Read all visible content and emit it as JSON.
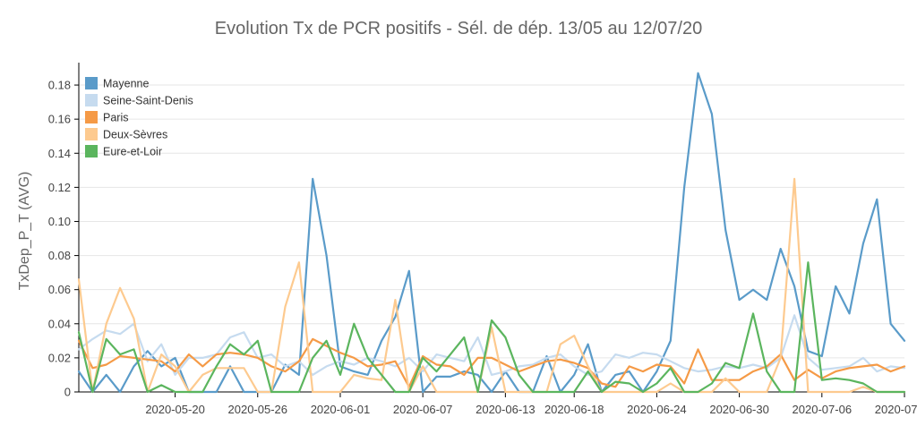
{
  "chart_data": {
    "type": "line",
    "title": "Evolution Tx de PCR positifs - Sél. de dép.   13/05  au 12/07/20",
    "ylabel": "TxDep_P_T (AVG)",
    "ylim": [
      0,
      0.19
    ],
    "yticks": [
      0,
      0.02,
      0.04,
      0.06,
      0.08,
      0.1,
      0.12,
      0.14,
      0.16,
      0.18
    ],
    "ytick_labels": [
      "0",
      "0.02",
      "0.04",
      "0.06",
      "0.08",
      "0.10",
      "0.12",
      "0.14",
      "0.16",
      "0.18"
    ],
    "x_start": "2020-05-13",
    "x_end": "2020-07-12",
    "xticks": [
      "2020-05-20",
      "2020-05-26",
      "2020-06-01",
      "2020-06-07",
      "2020-06-13",
      "2020-06-18",
      "2020-06-24",
      "2020-06-30",
      "2020-07-06",
      "2020-07-12"
    ],
    "xtick_labels": [
      "2020-05-20",
      "2020-05-26",
      "2020-06-01",
      "2020-06-07",
      "2020-06-13",
      "2020-06-18",
      "2020-06-24",
      "2020-06-30",
      "2020-07-06",
      "2020-07-12"
    ],
    "grid": true,
    "legend_position": "top-left",
    "series": [
      {
        "name": "Mayenne",
        "color": "#5a9bc9",
        "x": [
          "2020-05-13",
          "2020-05-14",
          "2020-05-15",
          "2020-05-16",
          "2020-05-17",
          "2020-05-18",
          "2020-05-19",
          "2020-05-20",
          "2020-05-21",
          "2020-05-22",
          "2020-05-23",
          "2020-05-24",
          "2020-05-25",
          "2020-05-26",
          "2020-05-27",
          "2020-05-28",
          "2020-05-29",
          "2020-05-30",
          "2020-05-31",
          "2020-06-01",
          "2020-06-02",
          "2020-06-03",
          "2020-06-04",
          "2020-06-05",
          "2020-06-06",
          "2020-06-07",
          "2020-06-08",
          "2020-06-09",
          "2020-06-10",
          "2020-06-11",
          "2020-06-12",
          "2020-06-13",
          "2020-06-14",
          "2020-06-15",
          "2020-06-16",
          "2020-06-17",
          "2020-06-18",
          "2020-06-19",
          "2020-06-20",
          "2020-06-21",
          "2020-06-22",
          "2020-06-23",
          "2020-06-24",
          "2020-06-25",
          "2020-06-26",
          "2020-06-27",
          "2020-06-28",
          "2020-06-29",
          "2020-06-30",
          "2020-07-01",
          "2020-07-02",
          "2020-07-03",
          "2020-07-04",
          "2020-07-05",
          "2020-07-06",
          "2020-07-07",
          "2020-07-08",
          "2020-07-09",
          "2020-07-10",
          "2020-07-11",
          "2020-07-12"
        ],
        "values": [
          0.012,
          0.0,
          0.01,
          0.0,
          0.015,
          0.024,
          0.015,
          0.02,
          0.0,
          0.0,
          0.0,
          0.015,
          0.0,
          0.0,
          0.0,
          0.016,
          0.01,
          0.125,
          0.08,
          0.015,
          0.012,
          0.01,
          0.03,
          0.044,
          0.071,
          0.0,
          0.009,
          0.009,
          0.012,
          0.01,
          0.0,
          0.012,
          0.0,
          0.0,
          0.021,
          0.0,
          0.01,
          0.028,
          0.0,
          0.01,
          0.012,
          0.0,
          0.012,
          0.03,
          0.12,
          0.187,
          0.163,
          0.095,
          0.054,
          0.06,
          0.054,
          0.084,
          0.062,
          0.024,
          0.021,
          0.062,
          0.046,
          0.087,
          0.113,
          0.04,
          0.03
        ]
      },
      {
        "name": "Seine-Saint-Denis",
        "color": "#c6dbef",
        "x": [
          "2020-05-13",
          "2020-05-14",
          "2020-05-15",
          "2020-05-16",
          "2020-05-17",
          "2020-05-18",
          "2020-05-19",
          "2020-05-20",
          "2020-05-21",
          "2020-05-22",
          "2020-05-23",
          "2020-05-24",
          "2020-05-25",
          "2020-05-26",
          "2020-05-27",
          "2020-05-28",
          "2020-05-29",
          "2020-05-30",
          "2020-05-31",
          "2020-06-01",
          "2020-06-02",
          "2020-06-03",
          "2020-06-04",
          "2020-06-05",
          "2020-06-06",
          "2020-06-07",
          "2020-06-08",
          "2020-06-09",
          "2020-06-10",
          "2020-06-11",
          "2020-06-12",
          "2020-06-13",
          "2020-06-14",
          "2020-06-15",
          "2020-06-16",
          "2020-06-17",
          "2020-06-18",
          "2020-06-19",
          "2020-06-20",
          "2020-06-21",
          "2020-06-22",
          "2020-06-23",
          "2020-06-24",
          "2020-06-25",
          "2020-06-26",
          "2020-06-27",
          "2020-06-28",
          "2020-06-29",
          "2020-06-30",
          "2020-07-01",
          "2020-07-02",
          "2020-07-03",
          "2020-07-04",
          "2020-07-05",
          "2020-07-06",
          "2020-07-07",
          "2020-07-08",
          "2020-07-09",
          "2020-07-10",
          "2020-07-11",
          "2020-07-12"
        ],
        "values": [
          0.025,
          0.031,
          0.036,
          0.034,
          0.04,
          0.018,
          0.028,
          0.01,
          0.02,
          0.02,
          0.022,
          0.032,
          0.035,
          0.02,
          0.022,
          0.015,
          0.018,
          0.01,
          0.015,
          0.018,
          0.016,
          0.02,
          0.018,
          0.015,
          0.02,
          0.012,
          0.022,
          0.02,
          0.018,
          0.032,
          0.01,
          0.012,
          0.015,
          0.016,
          0.02,
          0.022,
          0.015,
          0.01,
          0.012,
          0.022,
          0.02,
          0.023,
          0.022,
          0.018,
          0.014,
          0.012,
          0.013,
          0.015,
          0.014,
          0.016,
          0.014,
          0.02,
          0.045,
          0.02,
          0.013,
          0.014,
          0.015,
          0.02,
          0.012,
          0.015,
          0.014
        ]
      },
      {
        "name": "Paris",
        "color": "#f59a46",
        "x": [
          "2020-05-13",
          "2020-05-14",
          "2020-05-15",
          "2020-05-16",
          "2020-05-17",
          "2020-05-18",
          "2020-05-19",
          "2020-05-20",
          "2020-05-21",
          "2020-05-22",
          "2020-05-23",
          "2020-05-24",
          "2020-05-25",
          "2020-05-26",
          "2020-05-27",
          "2020-05-28",
          "2020-05-29",
          "2020-05-30",
          "2020-05-31",
          "2020-06-01",
          "2020-06-02",
          "2020-06-03",
          "2020-06-04",
          "2020-06-05",
          "2020-06-06",
          "2020-06-07",
          "2020-06-08",
          "2020-06-09",
          "2020-06-10",
          "2020-06-11",
          "2020-06-12",
          "2020-06-13",
          "2020-06-14",
          "2020-06-15",
          "2020-06-16",
          "2020-06-17",
          "2020-06-18",
          "2020-06-19",
          "2020-06-20",
          "2020-06-21",
          "2020-06-22",
          "2020-06-23",
          "2020-06-24",
          "2020-06-25",
          "2020-06-26",
          "2020-06-27",
          "2020-06-28",
          "2020-06-29",
          "2020-06-30",
          "2020-07-01",
          "2020-07-02",
          "2020-07-03",
          "2020-07-04",
          "2020-07-05",
          "2020-07-06",
          "2020-07-07",
          "2020-07-08",
          "2020-07-09",
          "2020-07-10",
          "2020-07-11",
          "2020-07-12"
        ],
        "values": [
          0.03,
          0.014,
          0.016,
          0.021,
          0.02,
          0.019,
          0.018,
          0.012,
          0.022,
          0.015,
          0.022,
          0.023,
          0.022,
          0.02,
          0.015,
          0.012,
          0.018,
          0.031,
          0.027,
          0.023,
          0.02,
          0.015,
          0.016,
          0.018,
          0.003,
          0.021,
          0.016,
          0.015,
          0.01,
          0.02,
          0.02,
          0.016,
          0.012,
          0.015,
          0.018,
          0.019,
          0.017,
          0.014,
          0.005,
          0.003,
          0.015,
          0.012,
          0.016,
          0.015,
          0.005,
          0.025,
          0.007,
          0.007,
          0.007,
          0.012,
          0.015,
          0.022,
          0.007,
          0.013,
          0.008,
          0.012,
          0.014,
          0.015,
          0.016,
          0.012,
          0.015
        ]
      },
      {
        "name": "Deux-Sèvres",
        "color": "#fdca8f",
        "x": [
          "2020-05-13",
          "2020-05-14",
          "2020-05-15",
          "2020-05-16",
          "2020-05-17",
          "2020-05-18",
          "2020-05-19",
          "2020-05-20",
          "2020-05-21",
          "2020-05-22",
          "2020-05-23",
          "2020-05-24",
          "2020-05-25",
          "2020-05-26",
          "2020-05-27",
          "2020-05-28",
          "2020-05-29",
          "2020-05-30",
          "2020-05-31",
          "2020-06-01",
          "2020-06-02",
          "2020-06-03",
          "2020-06-04",
          "2020-06-05",
          "2020-06-06",
          "2020-06-07",
          "2020-06-08",
          "2020-06-09",
          "2020-06-10",
          "2020-06-11",
          "2020-06-12",
          "2020-06-13",
          "2020-06-14",
          "2020-06-15",
          "2020-06-16",
          "2020-06-17",
          "2020-06-18",
          "2020-06-19",
          "2020-06-20",
          "2020-06-21",
          "2020-06-22",
          "2020-06-23",
          "2020-06-24",
          "2020-06-25",
          "2020-06-26",
          "2020-06-27",
          "2020-06-28",
          "2020-06-29",
          "2020-06-30",
          "2020-07-01",
          "2020-07-02",
          "2020-07-03",
          "2020-07-04",
          "2020-07-05",
          "2020-07-06",
          "2020-07-07",
          "2020-07-08",
          "2020-07-09",
          "2020-07-10",
          "2020-07-11",
          "2020-07-12"
        ],
        "values": [
          0.066,
          0.0,
          0.04,
          0.061,
          0.043,
          0.0,
          0.022,
          0.015,
          0.0,
          0.01,
          0.014,
          0.014,
          0.014,
          0.0,
          0.0,
          0.05,
          0.076,
          0.0,
          0.0,
          0.0,
          0.01,
          0.008,
          0.007,
          0.054,
          0.0,
          0.015,
          0.0,
          0.0,
          0.0,
          0.0,
          0.038,
          0.0,
          0.0,
          0.0,
          0.0,
          0.028,
          0.033,
          0.015,
          0.0,
          0.0,
          0.0,
          0.0,
          0.0,
          0.005,
          0.0,
          0.0,
          0.0,
          0.008,
          0.0,
          0.0,
          0.0,
          0.02,
          0.125,
          0.0,
          0.0,
          0.0,
          0.0,
          0.003,
          0.0,
          0.0,
          0.0
        ]
      },
      {
        "name": "Eure-et-Loir",
        "color": "#5bb55e",
        "x": [
          "2020-05-13",
          "2020-05-14",
          "2020-05-15",
          "2020-05-16",
          "2020-05-17",
          "2020-05-18",
          "2020-05-19",
          "2020-05-20",
          "2020-05-21",
          "2020-05-22",
          "2020-05-23",
          "2020-05-24",
          "2020-05-25",
          "2020-05-26",
          "2020-05-27",
          "2020-05-28",
          "2020-05-29",
          "2020-05-30",
          "2020-05-31",
          "2020-06-01",
          "2020-06-02",
          "2020-06-03",
          "2020-06-04",
          "2020-06-05",
          "2020-06-06",
          "2020-06-07",
          "2020-06-08",
          "2020-06-09",
          "2020-06-10",
          "2020-06-11",
          "2020-06-12",
          "2020-06-13",
          "2020-06-14",
          "2020-06-15",
          "2020-06-16",
          "2020-06-17",
          "2020-06-18",
          "2020-06-19",
          "2020-06-20",
          "2020-06-21",
          "2020-06-22",
          "2020-06-23",
          "2020-06-24",
          "2020-06-25",
          "2020-06-26",
          "2020-06-27",
          "2020-06-28",
          "2020-06-29",
          "2020-06-30",
          "2020-07-01",
          "2020-07-02",
          "2020-07-03",
          "2020-07-04",
          "2020-07-05",
          "2020-07-06",
          "2020-07-07",
          "2020-07-08",
          "2020-07-09",
          "2020-07-10",
          "2020-07-11",
          "2020-07-12"
        ],
        "values": [
          0.035,
          0.0,
          0.031,
          0.022,
          0.025,
          0.0,
          0.004,
          0.0,
          0.0,
          0.0,
          0.015,
          0.028,
          0.022,
          0.03,
          0.0,
          0.0,
          0.0,
          0.02,
          0.03,
          0.01,
          0.04,
          0.02,
          0.01,
          0.0,
          0.0,
          0.02,
          0.012,
          0.022,
          0.032,
          0.0,
          0.042,
          0.032,
          0.01,
          0.0,
          0.0,
          0.0,
          0.0,
          0.012,
          0.0,
          0.006,
          0.005,
          0.0,
          0.005,
          0.014,
          0.0,
          0.0,
          0.005,
          0.017,
          0.014,
          0.046,
          0.012,
          0.0,
          0.0,
          0.076,
          0.007,
          0.008,
          0.007,
          0.005,
          0.0,
          0.0,
          0.0
        ]
      }
    ]
  }
}
